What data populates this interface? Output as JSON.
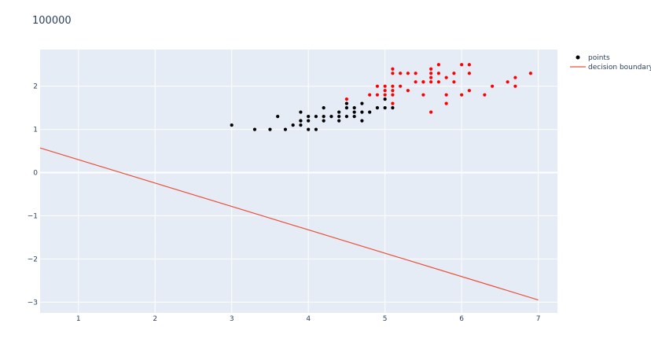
{
  "chart_data": {
    "type": "scatter",
    "title": "100000",
    "xlabel": "",
    "ylabel": "",
    "xlim": [
      0.5,
      7.25
    ],
    "ylim": [
      -3.25,
      2.85
    ],
    "x_ticks": [
      1,
      2,
      3,
      4,
      5,
      6,
      7
    ],
    "y_ticks": [
      -3,
      -2,
      -1,
      0,
      1,
      2
    ],
    "y_tick_labels": [
      "−3",
      "−2",
      "−1",
      "0",
      "1",
      "2"
    ],
    "grid": true,
    "legend_position": "top-right",
    "series": [
      {
        "name": "points",
        "type": "scatter",
        "color": "#000000",
        "x": [
          3.0,
          3.3,
          3.5,
          3.6,
          3.7,
          3.8,
          3.9,
          3.9,
          3.9,
          3.9,
          4.0,
          4.0,
          4.0,
          4.1,
          4.1,
          4.2,
          4.2,
          4.2,
          4.3,
          4.4,
          4.4,
          4.4,
          4.5,
          4.5,
          4.5,
          4.6,
          4.6,
          4.6,
          4.7,
          4.7,
          4.7,
          4.8,
          4.9,
          5.0,
          5.0,
          5.1
        ],
        "y": [
          1.1,
          1.0,
          1.0,
          1.3,
          1.0,
          1.1,
          1.4,
          1.2,
          1.1,
          1.2,
          1.3,
          1.2,
          1.0,
          1.3,
          1.0,
          1.5,
          1.3,
          1.2,
          1.3,
          1.4,
          1.3,
          1.2,
          1.6,
          1.5,
          1.3,
          1.5,
          1.4,
          1.3,
          1.6,
          1.4,
          1.2,
          1.4,
          1.5,
          1.7,
          1.5,
          1.5
        ]
      },
      {
        "name": "",
        "type": "scatter",
        "color": "#ff0000",
        "x": [
          4.5,
          4.8,
          4.9,
          4.9,
          5.0,
          5.0,
          5.0,
          5.1,
          5.1,
          5.1,
          5.1,
          5.1,
          5.1,
          5.2,
          5.2,
          5.3,
          5.3,
          5.4,
          5.4,
          5.5,
          5.5,
          5.5,
          5.6,
          5.6,
          5.6,
          5.6,
          5.6,
          5.7,
          5.7,
          5.7,
          5.8,
          5.8,
          5.8,
          5.9,
          5.9,
          6.0,
          6.0,
          6.1,
          6.1,
          6.1,
          6.3,
          6.4,
          6.6,
          6.7,
          6.7,
          6.9
        ],
        "y": [
          1.7,
          1.8,
          1.8,
          2.0,
          2.0,
          1.9,
          1.8,
          2.4,
          2.3,
          2.0,
          1.9,
          1.8,
          1.6,
          2.3,
          2.0,
          2.3,
          1.9,
          2.3,
          2.1,
          2.1,
          1.8,
          2.1,
          2.4,
          2.3,
          2.2,
          2.1,
          1.4,
          2.5,
          2.3,
          2.1,
          2.2,
          1.8,
          1.6,
          2.3,
          2.1,
          2.5,
          1.8,
          2.5,
          2.3,
          1.9,
          1.8,
          2.0,
          2.1,
          2.2,
          2.0,
          2.3
        ]
      },
      {
        "name": "decision boundary",
        "type": "line",
        "color": "#e8533a",
        "x": [
          0.5,
          7.0
        ],
        "y": [
          0.57,
          -2.95
        ]
      }
    ]
  }
}
